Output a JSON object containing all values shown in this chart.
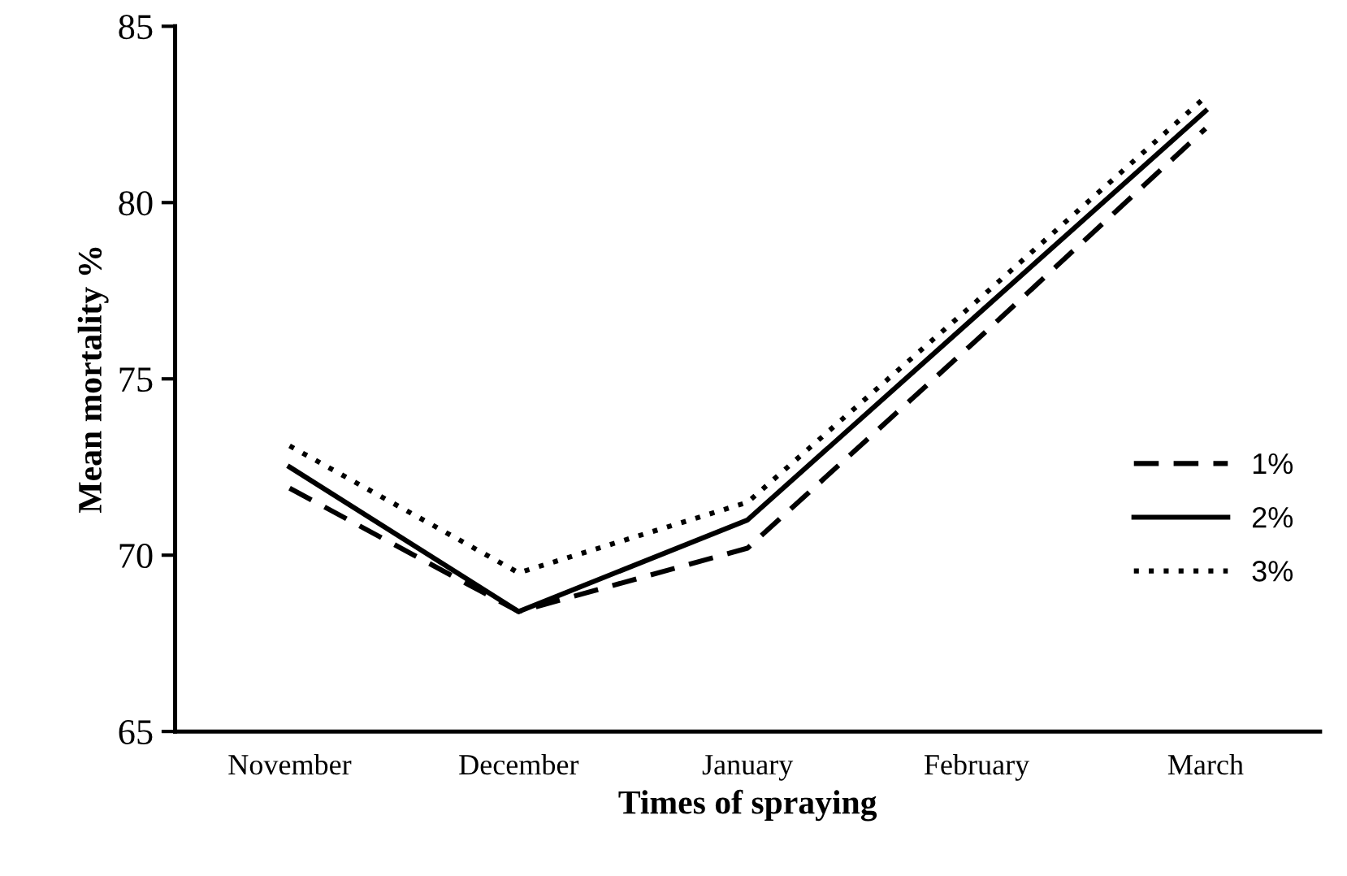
{
  "chart_data": {
    "type": "line",
    "xlabel": "Times of spraying",
    "ylabel": "Mean mortality %",
    "categories": [
      "November",
      "December",
      "January",
      "February",
      "March"
    ],
    "series": [
      {
        "name": "1%",
        "color": "#000000",
        "line_style": "dashed",
        "values": [
          71.9,
          68.4,
          70.2,
          76.1,
          82.1
        ]
      },
      {
        "name": "2%",
        "color": "#000000",
        "line_style": "solid",
        "values": [
          72.5,
          68.4,
          71.0,
          76.8,
          82.6
        ]
      },
      {
        "name": "3%",
        "color": "#000000",
        "line_style": "dotted",
        "values": [
          73.1,
          69.5,
          71.5,
          77.2,
          83.0
        ]
      }
    ],
    "ylim": [
      65,
      85
    ],
    "yticks": [
      65,
      70,
      75,
      80,
      85
    ],
    "grid": false,
    "legend": "center right",
    "marker": "none"
  }
}
